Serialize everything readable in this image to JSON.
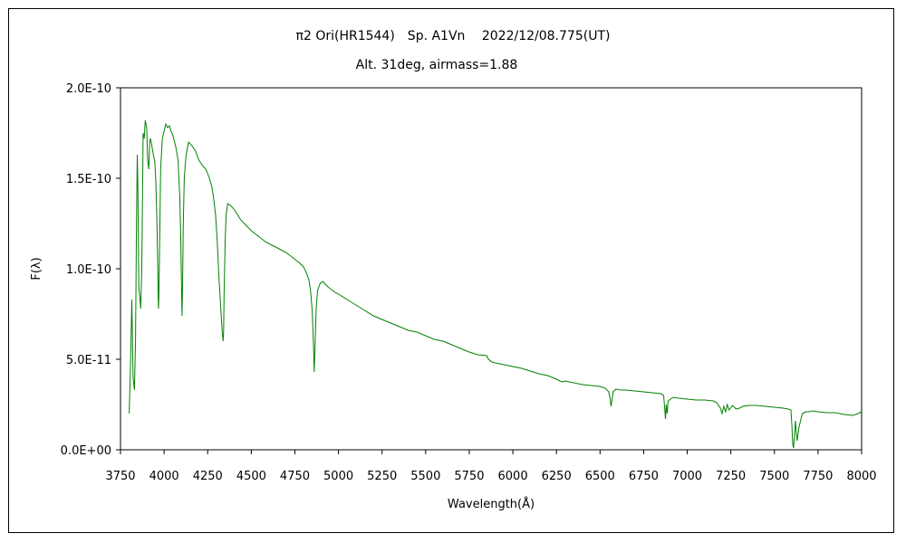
{
  "chart_data": {
    "type": "line",
    "title": "π2 Ori(HR1544)　Sp. A1Vn　 2022/12/08.775(UT)",
    "subtitle": "Alt. 31deg, airmass=1.88",
    "xlabel": "Wavelength(Å)",
    "ylabel": "F(λ)",
    "xlim": [
      3750,
      8000
    ],
    "ylim": [
      0,
      2e-10
    ],
    "x_ticks": [
      3750,
      4000,
      4250,
      4500,
      4750,
      5000,
      5250,
      5500,
      5750,
      6000,
      6250,
      6500,
      6750,
      7000,
      7250,
      7500,
      7750,
      8000
    ],
    "x_tick_labels": [
      "3750",
      "4000",
      "4250",
      "4500",
      "4750",
      "5000",
      "5250",
      "5500",
      "5750",
      "6000",
      "6250",
      "6500",
      "6750",
      "7000",
      "7250",
      "7500",
      "7750",
      "8000"
    ],
    "y_ticks": [
      0,
      5e-11,
      1e-10,
      1.5e-10,
      2e-10
    ],
    "y_tick_labels": [
      "0.0E+00",
      "5.0E-11",
      "1.0E-10",
      "1.5E-10",
      "2.0E-10"
    ],
    "grid": false,
    "legend": "none",
    "line_color": "#008000",
    "series": [
      {
        "x": [
          3800,
          3808,
          3815,
          3822,
          3830,
          3836,
          3842,
          3846,
          3850,
          3855,
          3860,
          3866,
          3872,
          3876,
          3880,
          3886,
          3892,
          3900,
          3906,
          3912,
          3918,
          3922,
          3926,
          3930,
          3935,
          3940,
          3946,
          3952,
          3958,
          3963,
          3966,
          3968,
          3970,
          3974,
          3980,
          3990,
          4000,
          4010,
          4020,
          4030,
          4040,
          4050,
          4060,
          4070,
          4080,
          4090,
          4095,
          4100,
          4103,
          4106,
          4110,
          4116,
          4125,
          4140,
          4160,
          4180,
          4200,
          4220,
          4240,
          4260,
          4275,
          4285,
          4295,
          4305,
          4315,
          4325,
          4333,
          4338,
          4341,
          4344,
          4350,
          4356,
          4365,
          4380,
          4400,
          4420,
          4440,
          4470,
          4500,
          4540,
          4580,
          4620,
          4660,
          4700,
          4740,
          4780,
          4800,
          4815,
          4830,
          4840,
          4850,
          4856,
          4861,
          4866,
          4872,
          4880,
          4895,
          4910,
          4940,
          4980,
          5000,
          5050,
          5100,
          5150,
          5200,
          5250,
          5300,
          5350,
          5400,
          5450,
          5500,
          5550,
          5600,
          5650,
          5700,
          5750,
          5800,
          5850,
          5860,
          5880,
          5900,
          5950,
          6000,
          6050,
          6100,
          6150,
          6200,
          6250,
          6280,
          6300,
          6350,
          6400,
          6450,
          6500,
          6530,
          6550,
          6558,
          6563,
          6568,
          6575,
          6590,
          6620,
          6650,
          6700,
          6750,
          6800,
          6850,
          6865,
          6870,
          6875,
          6880,
          6885,
          6890,
          6920,
          6950,
          7000,
          7050,
          7100,
          7150,
          7170,
          7190,
          7200,
          7210,
          7220,
          7230,
          7240,
          7260,
          7280,
          7300,
          7320,
          7350,
          7400,
          7450,
          7500,
          7550,
          7580,
          7595,
          7600,
          7605,
          7610,
          7615,
          7620,
          7625,
          7630,
          7640,
          7650,
          7660,
          7680,
          7700,
          7720,
          7750,
          7800,
          7850,
          7900,
          7950,
          7980,
          8000
        ],
        "y": [
          2e-11,
          5e-11,
          8.3e-11,
          4e-11,
          3.3e-11,
          6e-11,
          1.28e-10,
          1.63e-10,
          1.45e-10,
          9e-11,
          8.5e-11,
          7.8e-11,
          1e-10,
          1.4e-10,
          1.75e-10,
          1.72e-10,
          1.82e-10,
          1.78e-10,
          1.6e-10,
          1.55e-10,
          1.7e-10,
          1.72e-10,
          1.7e-10,
          1.68e-10,
          1.65e-10,
          1.62e-10,
          1.6e-10,
          1.5e-10,
          1.3e-10,
          1.05e-10,
          8.4e-11,
          7.8e-11,
          8.5e-11,
          1.1e-10,
          1.55e-10,
          1.72e-10,
          1.76e-10,
          1.8e-10,
          1.78e-10,
          1.79e-10,
          1.76e-10,
          1.74e-10,
          1.7e-10,
          1.66e-10,
          1.6e-10,
          1.4e-10,
          1.2e-10,
          8.8e-11,
          7.4e-11,
          9e-11,
          1.25e-10,
          1.5e-10,
          1.62e-10,
          1.7e-10,
          1.68e-10,
          1.65e-10,
          1.6e-10,
          1.57e-10,
          1.55e-10,
          1.5e-10,
          1.45e-10,
          1.38e-10,
          1.3e-10,
          1.15e-10,
          9.5e-11,
          7.8e-11,
          6.6e-11,
          6e-11,
          6.5e-11,
          8.5e-11,
          1.15e-10,
          1.3e-10,
          1.36e-10,
          1.35e-10,
          1.33e-10,
          1.3e-10,
          1.27e-10,
          1.24e-10,
          1.21e-10,
          1.18e-10,
          1.15e-10,
          1.13e-10,
          1.11e-10,
          1.09e-10,
          1.06e-10,
          1.03e-10,
          1.01e-10,
          9.8e-11,
          9.4e-11,
          8.8e-11,
          7.6e-11,
          6e-11,
          4.3e-11,
          5.8e-11,
          7.8e-11,
          8.8e-11,
          9.2e-11,
          9.3e-11,
          9e-11,
          8.7e-11,
          8.6e-11,
          8.3e-11,
          8e-11,
          7.7e-11,
          7.4e-11,
          7.2e-11,
          7e-11,
          6.8e-11,
          6.6e-11,
          6.5e-11,
          6.3e-11,
          6.1e-11,
          6e-11,
          5.8e-11,
          5.6e-11,
          5.4e-11,
          5.25e-11,
          5.2e-11,
          5e-11,
          4.85e-11,
          4.8e-11,
          4.7e-11,
          4.6e-11,
          4.5e-11,
          4.35e-11,
          4.2e-11,
          4.1e-11,
          3.9e-11,
          3.75e-11,
          3.8e-11,
          3.7e-11,
          3.6e-11,
          3.55e-11,
          3.5e-11,
          3.4e-11,
          3.2e-11,
          2.8e-11,
          2.4e-11,
          2.7e-11,
          3.2e-11,
          3.35e-11,
          3.3e-11,
          3.3e-11,
          3.25e-11,
          3.2e-11,
          3.15e-11,
          3.1e-11,
          3e-11,
          2.4e-11,
          1.7e-11,
          2.5e-11,
          2e-11,
          2.7e-11,
          2.9e-11,
          2.85e-11,
          2.8e-11,
          2.75e-11,
          2.75e-11,
          2.7e-11,
          2.6e-11,
          2.3e-11,
          2e-11,
          2.4e-11,
          2.1e-11,
          2.5e-11,
          2.2e-11,
          2.45e-11,
          2.25e-11,
          2.3e-11,
          2.4e-11,
          2.45e-11,
          2.45e-11,
          2.4e-11,
          2.35e-11,
          2.3e-11,
          2.25e-11,
          2.2e-11,
          1.4e-11,
          3e-12,
          1e-12,
          8e-12,
          1.6e-11,
          1e-11,
          5e-12,
          1.2e-11,
          1.6e-11,
          2e-11,
          2.1e-11,
          2.1e-11,
          2.15e-11,
          2.1e-11,
          2.05e-11,
          2.05e-11,
          1.95e-11,
          1.9e-11,
          2e-11,
          2.1e-11
        ]
      }
    ]
  }
}
